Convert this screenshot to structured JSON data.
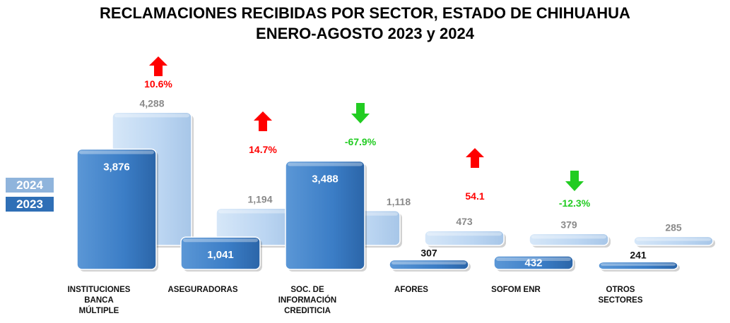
{
  "title": "RECLAMACIONES RECIBIDAS POR SECTOR, ESTADO DE CHIHUAHUA",
  "subtitle": "ENERO-AGOSTO 2023 y 2024",
  "chart_data": {
    "type": "bar",
    "categories": [
      "INSTITUCIONES BANCA MÚLTIPLE",
      "ASEGURADORAS",
      "SOC. DE INFORMACIÓN CREDITICIA",
      "AFORES",
      "SOFOM ENR",
      "OTROS SECTORES"
    ],
    "category_lines": [
      [
        "INSTITUCIONES",
        "BANCA",
        "MÚLTIPLE"
      ],
      [
        "ASEGURADORAS"
      ],
      [
        "SOC. DE",
        "INFORMACIÓN",
        "CREDITICIA"
      ],
      [
        "AFORES"
      ],
      [
        "SOFOM ENR"
      ],
      [
        "OTROS",
        "SECTORES"
      ]
    ],
    "series": [
      {
        "name": "2023",
        "values": [
          3876,
          1041,
          3488,
          307,
          432,
          241
        ],
        "labels": [
          "3,876",
          "1,041",
          "3,488",
          "307",
          "432",
          "241"
        ],
        "color": "#3b7dc6"
      },
      {
        "name": "2024",
        "values": [
          4288,
          1194,
          1118,
          473,
          379,
          285
        ],
        "labels": [
          "4,288",
          "1,194",
          "1,118",
          "473",
          "379",
          "285"
        ],
        "color": "#bcd6f2"
      }
    ],
    "changes": [
      {
        "label": "10.6%",
        "direction": "up",
        "color": "#ff0000"
      },
      {
        "label": "14.7%",
        "direction": "up",
        "color": "#ff0000"
      },
      {
        "label": "-67.9%",
        "direction": "down",
        "color": "#22cc22"
      },
      {
        "label": "54.1",
        "direction": "up",
        "color": "#ff0000"
      },
      {
        "label": "-12.3%",
        "direction": "down",
        "color": "#22cc22"
      }
    ],
    "legend": [
      "2024",
      "2023"
    ],
    "legend_position": "left"
  }
}
